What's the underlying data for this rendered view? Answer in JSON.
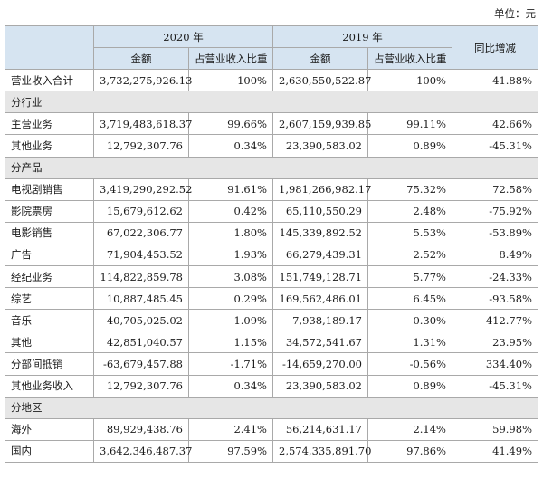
{
  "unit_label": "单位：元",
  "headers": {
    "year_2020": "2020 年",
    "year_2019": "2019 年",
    "yoy": "同比增减",
    "amount": "金额",
    "share": "占营业收入比重"
  },
  "total": {
    "label": "营业收入合计",
    "amt_2020": "3,732,275,926.13",
    "pct_2020": "100%",
    "amt_2019": "2,630,550,522.87",
    "pct_2019": "100%",
    "yoy": "41.88%"
  },
  "sections": [
    {
      "title": "分行业",
      "rows": [
        {
          "label": "主营业务",
          "amt_2020": "3,719,483,618.37",
          "pct_2020": "99.66%",
          "amt_2019": "2,607,159,939.85",
          "pct_2019": "99.11%",
          "yoy": "42.66%"
        },
        {
          "label": "其他业务",
          "amt_2020": "12,792,307.76",
          "pct_2020": "0.34%",
          "amt_2019": "23,390,583.02",
          "pct_2019": "0.89%",
          "yoy": "-45.31%"
        }
      ]
    },
    {
      "title": "分产品",
      "rows": [
        {
          "label": "电视剧销售",
          "amt_2020": "3,419,290,292.52",
          "pct_2020": "91.61%",
          "amt_2019": "1,981,266,982.17",
          "pct_2019": "75.32%",
          "yoy": "72.58%"
        },
        {
          "label": "影院票房",
          "amt_2020": "15,679,612.62",
          "pct_2020": "0.42%",
          "amt_2019": "65,110,550.29",
          "pct_2019": "2.48%",
          "yoy": "-75.92%"
        },
        {
          "label": "电影销售",
          "amt_2020": "67,022,306.77",
          "pct_2020": "1.80%",
          "amt_2019": "145,339,892.52",
          "pct_2019": "5.53%",
          "yoy": "-53.89%"
        },
        {
          "label": "广告",
          "amt_2020": "71,904,453.52",
          "pct_2020": "1.93%",
          "amt_2019": "66,279,439.31",
          "pct_2019": "2.52%",
          "yoy": "8.49%"
        },
        {
          "label": "经纪业务",
          "amt_2020": "114,822,859.78",
          "pct_2020": "3.08%",
          "amt_2019": "151,749,128.71",
          "pct_2019": "5.77%",
          "yoy": "-24.33%"
        },
        {
          "label": "综艺",
          "amt_2020": "10,887,485.45",
          "pct_2020": "0.29%",
          "amt_2019": "169,562,486.01",
          "pct_2019": "6.45%",
          "yoy": "-93.58%"
        },
        {
          "label": "音乐",
          "amt_2020": "40,705,025.02",
          "pct_2020": "1.09%",
          "amt_2019": "7,938,189.17",
          "pct_2019": "0.30%",
          "yoy": "412.77%"
        },
        {
          "label": "其他",
          "amt_2020": "42,851,040.57",
          "pct_2020": "1.15%",
          "amt_2019": "34,572,541.67",
          "pct_2019": "1.31%",
          "yoy": "23.95%"
        },
        {
          "label": "分部间抵销",
          "amt_2020": "-63,679,457.88",
          "pct_2020": "-1.71%",
          "amt_2019": "-14,659,270.00",
          "pct_2019": "-0.56%",
          "yoy": "334.40%"
        },
        {
          "label": "其他业务收入",
          "amt_2020": "12,792,307.76",
          "pct_2020": "0.34%",
          "amt_2019": "23,390,583.02",
          "pct_2019": "0.89%",
          "yoy": "-45.31%"
        }
      ]
    },
    {
      "title": "分地区",
      "rows": [
        {
          "label": "海外",
          "amt_2020": "89,929,438.76",
          "pct_2020": "2.41%",
          "amt_2019": "56,214,631.17",
          "pct_2019": "2.14%",
          "yoy": "59.98%"
        },
        {
          "label": "国内",
          "amt_2020": "3,642,346,487.37",
          "pct_2020": "97.59%",
          "amt_2019": "2,574,335,891.70",
          "pct_2019": "97.86%",
          "yoy": "41.49%"
        }
      ]
    }
  ]
}
